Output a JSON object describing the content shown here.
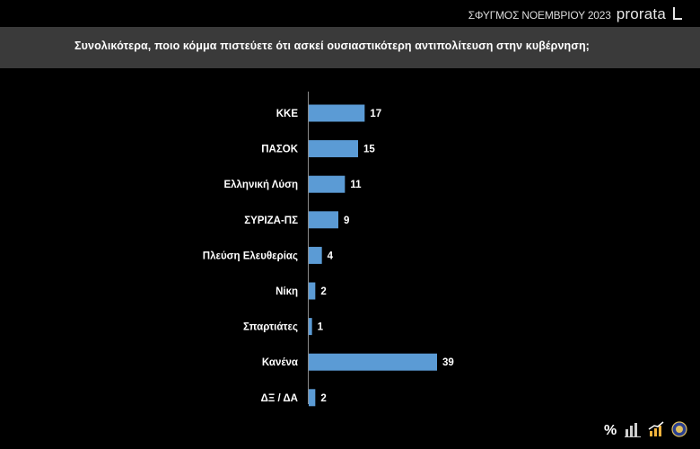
{
  "header": {
    "survey_label": "ΣΦΥΓΜΟΣ ΝΟΕΜΒΡΙΟΥ 2023",
    "brand": "prorata"
  },
  "question": "Συνολικότερα, ποιο κόμμα πιστεύετε ότι ασκεί ουσιαστικότερη αντιπολίτευση στην κυβέρνηση;",
  "footer_icons": [
    "percent-icon",
    "bar-chart-icon",
    "growth-chart-icon",
    "seal-icon"
  ],
  "colors": {
    "bar": "#5b9bd5",
    "background": "#000000",
    "band": "#3a3a3a",
    "text": "#ffffff"
  },
  "chart_data": {
    "type": "bar",
    "orientation": "horizontal",
    "categories": [
      "ΚΚΕ",
      "ΠΑΣΟΚ",
      "Ελληνική Λύση",
      "ΣΥΡΙΖΑ-ΠΣ",
      "Πλεύση Ελευθερίας",
      "Νίκη",
      "Σπαρτιάτες",
      "Κανένα",
      "ΔΞ / ΔΑ"
    ],
    "values": [
      17,
      15,
      11,
      9,
      4,
      2,
      1,
      39,
      2
    ],
    "xlim": [
      0,
      39
    ],
    "grid": false,
    "legend": "none"
  }
}
